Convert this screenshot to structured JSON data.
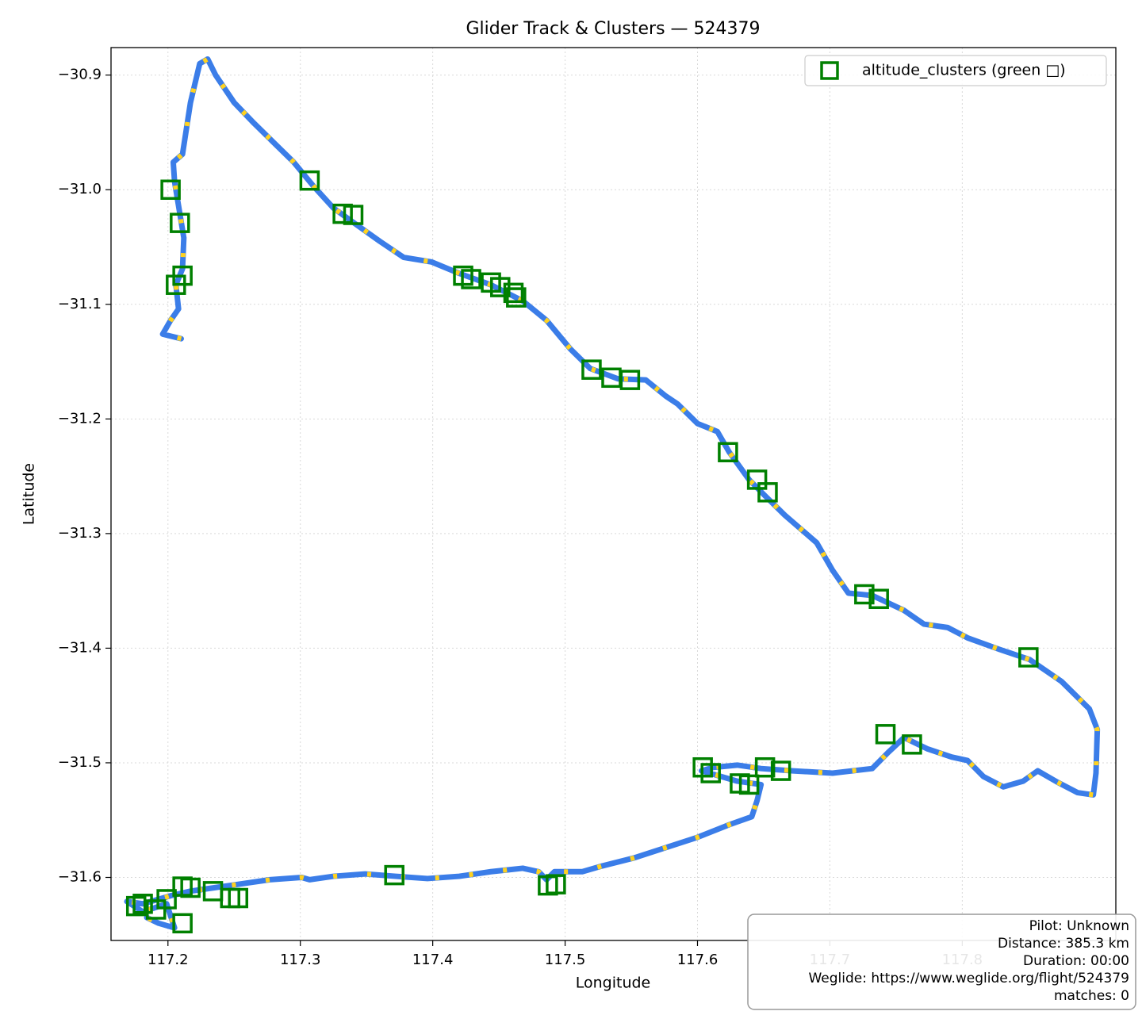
{
  "chart_data": {
    "type": "line",
    "title": "Glider Track & Clusters — 524379",
    "xlabel": "Longitude",
    "ylabel": "Latitude",
    "xlim": [
      117.157,
      117.916
    ],
    "ylim": [
      -31.655,
      -30.876
    ],
    "xticks": [
      117.2,
      117.3,
      117.4,
      117.5,
      117.6,
      117.7,
      117.8
    ],
    "yticks": [
      {
        "value": -30.9,
        "label": "−30.9"
      },
      {
        "value": -31.0,
        "label": "−31.0"
      },
      {
        "value": -31.1,
        "label": "−31.1"
      },
      {
        "value": -31.2,
        "label": "−31.2"
      },
      {
        "value": -31.3,
        "label": "−31.3"
      },
      {
        "value": -31.4,
        "label": "−31.4"
      },
      {
        "value": -31.5,
        "label": "−31.5"
      },
      {
        "value": -31.6,
        "label": "−31.6"
      }
    ],
    "grid": true,
    "legend": "upper right",
    "annotation": [
      "Pilot: Unknown",
      "Distance: 385.3 km",
      "Duration: 00:00",
      "Weglide: https://www.weglide.org/flight/524379",
      "matches: 0"
    ],
    "series": [
      {
        "type": "line",
        "color": "#3b7de8",
        "dash_color": "#ffd21f",
        "x": [
          117.21,
          117.196,
          117.202,
          117.208,
          117.206,
          117.211,
          117.212,
          117.208,
          117.205,
          117.204,
          117.211,
          117.217,
          117.224,
          117.23,
          117.236,
          117.25,
          117.265,
          117.28,
          117.295,
          117.31,
          117.325,
          117.343,
          117.36,
          117.378,
          117.399,
          117.42,
          117.444,
          117.468,
          117.486,
          117.504,
          117.519,
          117.54,
          117.561,
          117.576,
          117.585,
          117.6,
          117.615,
          117.624,
          117.639,
          117.651,
          117.666,
          117.69,
          117.702,
          117.714,
          117.732,
          117.756,
          117.771,
          117.789,
          117.804,
          117.828,
          117.851,
          117.875,
          117.896,
          117.902,
          117.901,
          117.899,
          117.887,
          117.872,
          117.857,
          117.846,
          117.831,
          117.816,
          117.804,
          117.792,
          117.774,
          117.756,
          117.744,
          117.732,
          117.702,
          117.672,
          117.648,
          117.63,
          117.612,
          117.603,
          117.63,
          117.648,
          117.645,
          117.641,
          117.624,
          117.6,
          117.576,
          117.552,
          117.528,
          117.513,
          117.492,
          117.486,
          117.48,
          117.468,
          117.444,
          117.432,
          117.42,
          117.396,
          117.372,
          117.349,
          117.325,
          117.307,
          117.301,
          117.277,
          117.253,
          117.235,
          117.217,
          117.202,
          117.193,
          117.181,
          117.169,
          117.181,
          117.199,
          117.205,
          117.193,
          117.184
        ],
        "values": [
          -31.13,
          -31.126,
          -31.114,
          -31.104,
          -31.083,
          -31.069,
          -31.042,
          -31.014,
          -30.993,
          -30.976,
          -30.969,
          -30.924,
          -30.89,
          -30.886,
          -30.9,
          -30.924,
          -30.942,
          -30.959,
          -30.976,
          -30.997,
          -31.016,
          -31.031,
          -31.045,
          -31.059,
          -31.063,
          -31.073,
          -31.083,
          -31.097,
          -31.114,
          -31.139,
          -31.156,
          -31.165,
          -31.166,
          -31.18,
          -31.187,
          -31.204,
          -31.211,
          -31.229,
          -31.253,
          -31.267,
          -31.284,
          -31.308,
          -31.332,
          -31.352,
          -31.354,
          -31.367,
          -31.379,
          -31.382,
          -31.391,
          -31.401,
          -31.41,
          -31.429,
          -31.453,
          -31.471,
          -31.509,
          -31.528,
          -31.526,
          -31.517,
          -31.507,
          -31.516,
          -31.521,
          -31.512,
          -31.498,
          -31.495,
          -31.488,
          -31.478,
          -31.491,
          -31.505,
          -31.509,
          -31.507,
          -31.505,
          -31.502,
          -31.504,
          -31.507,
          -31.516,
          -31.519,
          -31.533,
          -31.547,
          -31.554,
          -31.565,
          -31.574,
          -31.583,
          -31.59,
          -31.595,
          -31.595,
          -31.602,
          -31.595,
          -31.592,
          -31.595,
          -31.597,
          -31.599,
          -31.601,
          -31.599,
          -31.597,
          -31.599,
          -31.602,
          -31.6,
          -31.602,
          -31.606,
          -31.609,
          -31.612,
          -31.616,
          -31.619,
          -31.623,
          -31.621,
          -31.63,
          -31.623,
          -31.644,
          -31.64,
          -31.635
        ]
      },
      {
        "type": "scatter",
        "name": "altitude_clusters (green □)",
        "color": "#008000",
        "marker": "square",
        "x": [
          117.202,
          117.209,
          117.206,
          117.211,
          117.307,
          117.332,
          117.34,
          117.423,
          117.429,
          117.444,
          117.451,
          117.461,
          117.463,
          117.52,
          117.535,
          117.549,
          117.623,
          117.645,
          117.653,
          117.726,
          117.737,
          117.85,
          117.742,
          117.762,
          117.604,
          117.61,
          117.632,
          117.639,
          117.651,
          117.663,
          117.371,
          117.487,
          117.493,
          117.211,
          117.217,
          117.247,
          117.253,
          117.234,
          117.176,
          117.181,
          117.191,
          117.199,
          117.211
        ],
        "values": [
          -31.0,
          -31.029,
          -31.083,
          -31.075,
          -30.992,
          -31.021,
          -31.022,
          -31.075,
          -31.078,
          -31.081,
          -31.085,
          -31.09,
          -31.094,
          -31.157,
          -31.164,
          -31.166,
          -31.229,
          -31.253,
          -31.264,
          -31.353,
          -31.357,
          -31.408,
          -31.475,
          -31.484,
          -31.504,
          -31.509,
          -31.518,
          -31.519,
          -31.504,
          -31.507,
          -31.598,
          -31.607,
          -31.606,
          -31.608,
          -31.609,
          -31.618,
          -31.618,
          -31.612,
          -31.625,
          -31.623,
          -31.628,
          -31.619,
          -31.64
        ]
      }
    ]
  }
}
